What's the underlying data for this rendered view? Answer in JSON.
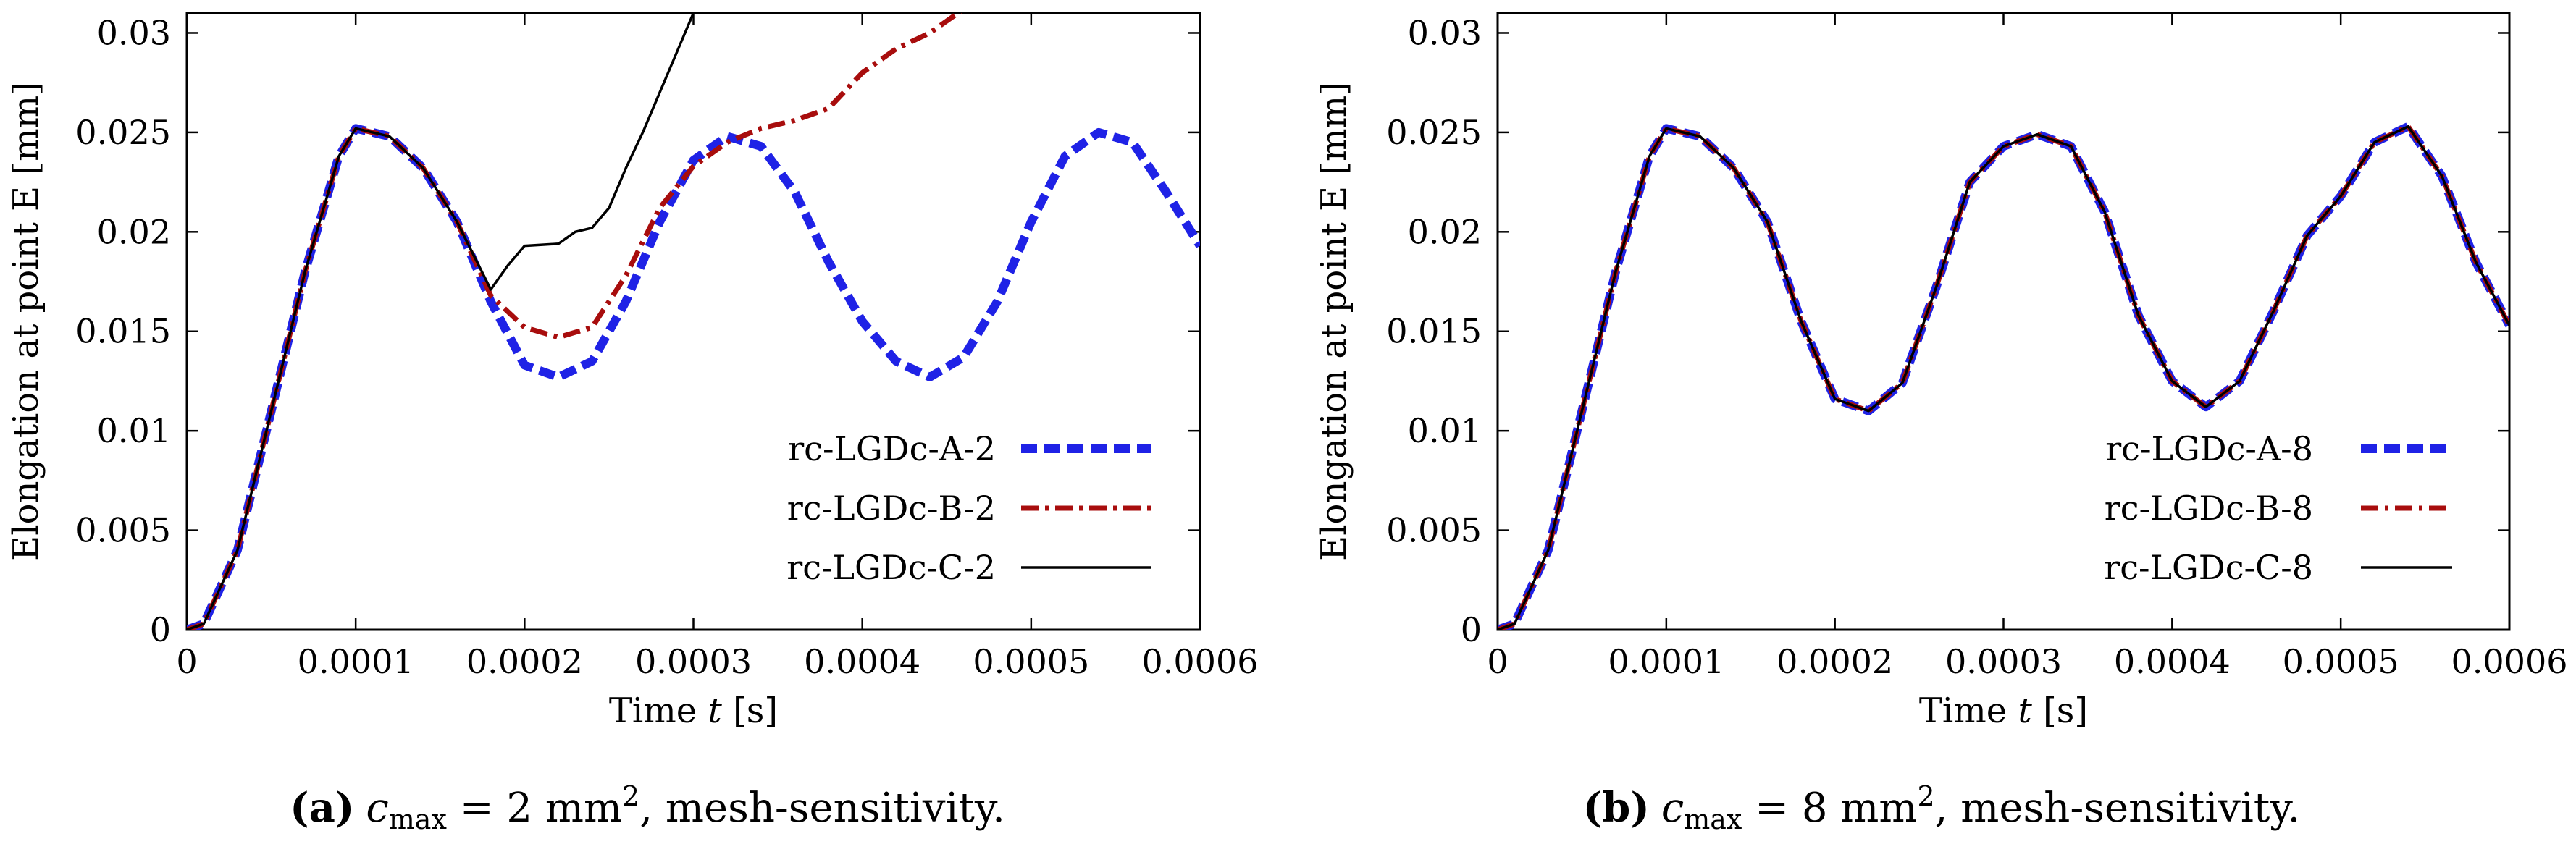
{
  "chart_data": [
    {
      "type": "line",
      "caption": {
        "tag": "(a)",
        "var": "c",
        "sub": "max",
        "eq": " = 2 mm",
        "sup": "2",
        "rest": ", mesh-sensitivity."
      },
      "xlabel_pre": "Time ",
      "xlabel_var": "t",
      "xlabel_post": " [s]",
      "ylabel": "Elongation at point E [mm]",
      "xlim": [
        0,
        0.0006
      ],
      "ylim": [
        0,
        0.031
      ],
      "xticks": [
        "0",
        "0.0001",
        "0.0002",
        "0.0003",
        "0.0004",
        "0.0005",
        "0.0006"
      ],
      "yticks": [
        "0",
        "0.005",
        "0.01",
        "0.015",
        "0.02",
        "0.025",
        "0.03"
      ],
      "legend_position": "lower-right",
      "series": [
        {
          "name": "rc-LGDc-A-2",
          "style": "dashed-thick",
          "color": "#1f22e6",
          "x": [
            0,
            1e-05,
            3e-05,
            5e-05,
            7e-05,
            9e-05,
            0.0001,
            0.00012,
            0.00014,
            0.00016,
            0.00018,
            0.0002,
            0.00022,
            0.00024,
            0.00026,
            0.00028,
            0.0003,
            0.00032,
            0.00034,
            0.00036,
            0.00038,
            0.0004,
            0.00042,
            0.00044,
            0.00046,
            0.00048,
            0.0005,
            0.00052,
            0.00054,
            0.00056,
            0.00058,
            0.0006
          ],
          "y": [
            0,
            0.0003,
            0.004,
            0.011,
            0.018,
            0.0238,
            0.0252,
            0.0248,
            0.0232,
            0.0205,
            0.0165,
            0.0133,
            0.0127,
            0.0135,
            0.0165,
            0.0205,
            0.0236,
            0.0248,
            0.0243,
            0.022,
            0.0185,
            0.0155,
            0.0135,
            0.0127,
            0.0137,
            0.0165,
            0.0205,
            0.0238,
            0.025,
            0.0245,
            0.022,
            0.0193
          ]
        },
        {
          "name": "rc-LGDc-B-2",
          "style": "dash-dot",
          "color": "#a80d0d",
          "x": [
            0,
            1e-05,
            3e-05,
            5e-05,
            7e-05,
            9e-05,
            0.0001,
            0.00012,
            0.00014,
            0.00016,
            0.00018,
            0.0002,
            0.00022,
            0.00024,
            0.00026,
            0.00028,
            0.0003,
            0.00032,
            0.00034,
            0.00036,
            0.00038,
            0.0004,
            0.00042,
            0.00044,
            0.00046
          ],
          "y": [
            0,
            0.0003,
            0.004,
            0.011,
            0.018,
            0.0238,
            0.0252,
            0.0248,
            0.0232,
            0.0205,
            0.0168,
            0.0152,
            0.0147,
            0.0152,
            0.0178,
            0.0212,
            0.0233,
            0.0245,
            0.0252,
            0.0256,
            0.0262,
            0.028,
            0.0292,
            0.03,
            0.0312
          ]
        },
        {
          "name": "rc-LGDc-C-2",
          "style": "solid-thin",
          "color": "#000000",
          "x": [
            0,
            1e-05,
            3e-05,
            5e-05,
            7e-05,
            9e-05,
            0.0001,
            0.00012,
            0.00014,
            0.00016,
            0.00018,
            0.00019,
            0.0002,
            0.00022,
            0.00023,
            0.00024,
            0.00025,
            0.00026,
            0.00027,
            0.00028,
            0.00029,
            0.0003
          ],
          "y": [
            0,
            0.0003,
            0.004,
            0.011,
            0.018,
            0.0238,
            0.0252,
            0.0248,
            0.0232,
            0.0205,
            0.0171,
            0.0183,
            0.0193,
            0.0194,
            0.02,
            0.0202,
            0.0212,
            0.0232,
            0.025,
            0.027,
            0.029,
            0.031
          ]
        }
      ]
    },
    {
      "type": "line",
      "caption": {
        "tag": "(b)",
        "var": "c",
        "sub": "max",
        "eq": " = 8 mm",
        "sup": "2",
        "rest": ", mesh-sensitivity."
      },
      "xlabel_pre": "Time ",
      "xlabel_var": "t",
      "xlabel_post": " [s]",
      "ylabel": "Elongation at point E [mm]",
      "xlim": [
        0,
        0.0006
      ],
      "ylim": [
        0,
        0.031
      ],
      "xticks": [
        "0",
        "0.0001",
        "0.0002",
        "0.0003",
        "0.0004",
        "0.0005",
        "0.0006"
      ],
      "yticks": [
        "0",
        "0.005",
        "0.01",
        "0.015",
        "0.02",
        "0.025",
        "0.03"
      ],
      "legend_position": "lower-right",
      "series": [
        {
          "name": "rc-LGDc-A-8",
          "style": "dashed-thick",
          "color": "#1f22e6",
          "x": [
            0,
            1e-05,
            3e-05,
            5e-05,
            7e-05,
            9e-05,
            0.0001,
            0.00012,
            0.00014,
            0.00016,
            0.00018,
            0.0002,
            0.00022,
            0.00024,
            0.00026,
            0.00028,
            0.0003,
            0.00032,
            0.00034,
            0.00036,
            0.00038,
            0.0004,
            0.00042,
            0.00044,
            0.00046,
            0.00048,
            0.0005,
            0.00052,
            0.00054,
            0.00056,
            0.00058,
            0.0006
          ],
          "y": [
            0,
            0.0003,
            0.004,
            0.011,
            0.018,
            0.0238,
            0.0252,
            0.0248,
            0.0232,
            0.0205,
            0.0155,
            0.0116,
            0.011,
            0.0124,
            0.0172,
            0.0225,
            0.0243,
            0.0249,
            0.0243,
            0.021,
            0.0158,
            0.0125,
            0.0112,
            0.0125,
            0.016,
            0.0198,
            0.0218,
            0.0245,
            0.0253,
            0.0228,
            0.0185,
            0.0153
          ]
        },
        {
          "name": "rc-LGDc-B-8",
          "style": "dash-dot",
          "color": "#a80d0d",
          "x": [
            0,
            1e-05,
            3e-05,
            5e-05,
            7e-05,
            9e-05,
            0.0001,
            0.00012,
            0.00014,
            0.00016,
            0.00018,
            0.0002,
            0.00022,
            0.00024,
            0.00026,
            0.00028,
            0.0003,
            0.00032,
            0.00034,
            0.00036,
            0.00038,
            0.0004,
            0.00042,
            0.00044,
            0.00046,
            0.00048,
            0.0005,
            0.00052,
            0.00054,
            0.00056,
            0.00058,
            0.0006
          ],
          "y": [
            0,
            0.0003,
            0.004,
            0.011,
            0.018,
            0.0238,
            0.0252,
            0.0248,
            0.0232,
            0.0205,
            0.0155,
            0.0116,
            0.011,
            0.0124,
            0.0172,
            0.0225,
            0.0243,
            0.0249,
            0.0243,
            0.021,
            0.0158,
            0.0125,
            0.0112,
            0.0125,
            0.016,
            0.0198,
            0.0218,
            0.0245,
            0.0253,
            0.0228,
            0.0185,
            0.0153
          ]
        },
        {
          "name": "rc-LGDc-C-8",
          "style": "solid-thin",
          "color": "#000000",
          "x": [
            0,
            1e-05,
            3e-05,
            5e-05,
            7e-05,
            9e-05,
            0.0001,
            0.00012,
            0.00014,
            0.00016,
            0.00018,
            0.0002,
            0.00022,
            0.00024,
            0.00026,
            0.00028,
            0.0003,
            0.00032,
            0.00034,
            0.00036,
            0.00038,
            0.0004,
            0.00042,
            0.00044,
            0.00046,
            0.00048,
            0.0005,
            0.00052,
            0.00054,
            0.00056,
            0.00058,
            0.0006
          ],
          "y": [
            0,
            0.0003,
            0.004,
            0.011,
            0.018,
            0.0238,
            0.0252,
            0.0248,
            0.0232,
            0.0205,
            0.0155,
            0.0116,
            0.011,
            0.0124,
            0.0172,
            0.0225,
            0.0243,
            0.0249,
            0.0243,
            0.021,
            0.0158,
            0.0125,
            0.0112,
            0.0125,
            0.016,
            0.0198,
            0.0218,
            0.0245,
            0.0253,
            0.0228,
            0.0185,
            0.0153
          ]
        }
      ]
    }
  ]
}
